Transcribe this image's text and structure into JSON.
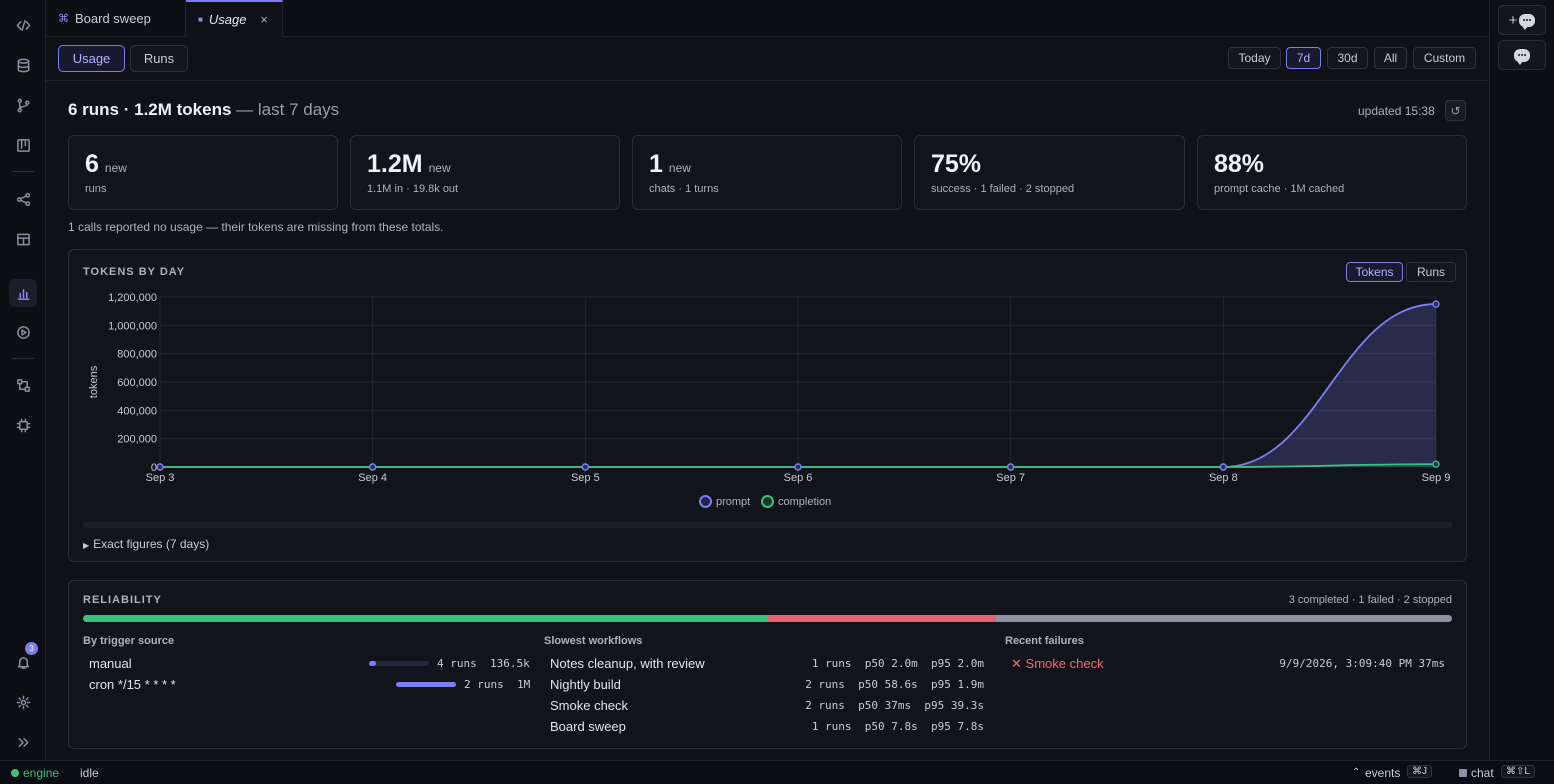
{
  "tabs": [
    {
      "icon": "⌘",
      "label": "Board sweep"
    },
    {
      "icon": "■",
      "label": "Usage",
      "close": "×"
    }
  ],
  "toolbar": {
    "views": [
      "Usage",
      "Runs"
    ],
    "ranges": [
      "Today",
      "7d",
      "30d",
      "All",
      "Custom"
    ],
    "selected_view": "Usage",
    "selected_range": "7d"
  },
  "summary": {
    "headline": "6 runs · 1.2M tokens",
    "headline_suffix": " — last 7 days",
    "updated": "updated 15:38",
    "refresh_icon": "↺"
  },
  "cards": [
    {
      "value": "6",
      "tag": "new",
      "detail": "runs"
    },
    {
      "value": "1.2M",
      "tag": "new",
      "detail": "1.1M in · 19.8k out"
    },
    {
      "value": "1",
      "tag": "new",
      "detail": "chats · 1 turns"
    },
    {
      "value": "75%",
      "tag": "",
      "detail": "success · 1 failed · 2 stopped"
    },
    {
      "value": "88%",
      "tag": "",
      "detail": "prompt cache · 1M cached"
    }
  ],
  "warning": "1 calls reported no usage — their tokens are missing from these totals.",
  "tokens_panel": {
    "title": "TOKENS BY DAY",
    "toggle": [
      "Tokens",
      "Runs"
    ],
    "selected": "Tokens",
    "exact_label": "Exact figures (7 days)",
    "exact_arrow": "▶"
  },
  "chart_data": {
    "type": "area",
    "x": [
      "Sep 3",
      "Sep 4",
      "Sep 5",
      "Sep 6",
      "Sep 7",
      "Sep 8",
      "Sep 9"
    ],
    "series": [
      {
        "name": "prompt",
        "values": [
          0,
          0,
          0,
          0,
          0,
          0,
          1150000
        ],
        "color": "#7b7ff2"
      },
      {
        "name": "completion",
        "values": [
          0,
          0,
          0,
          0,
          0,
          0,
          19800
        ],
        "color": "#3fbf7f"
      }
    ],
    "ylabel": "tokens",
    "ylim": [
      0,
      1200000
    ],
    "yticks": [
      "0",
      "200,000",
      "400,000",
      "600,000",
      "800,000",
      "1,000,000",
      "1,200,000"
    ],
    "grid": true,
    "legend": "bottom-center"
  },
  "reliability": {
    "title": "RELIABILITY",
    "summary": "3 completed · 1 failed · 2 stopped",
    "shares": {
      "completed": 0.5,
      "failed": 0.1667,
      "stopped": 0.3333
    },
    "colors": {
      "completed": "#3fbf7f",
      "failed": "#e5636a",
      "stopped": "#8e93a3"
    },
    "trigger_header": "By trigger source",
    "triggers": [
      {
        "name": "manual",
        "runs": "4 runs",
        "tokens": "136.5k",
        "share": 0.12
      },
      {
        "name": "cron */15 * * * *",
        "runs": "2 runs",
        "tokens": "1M",
        "share": 1.0
      }
    ],
    "slowest_header": "Slowest workflows",
    "slowest": [
      {
        "name": "Notes cleanup, with review",
        "stats": "1 runs  p50 2.0m  p95 2.0m"
      },
      {
        "name": "Nightly build",
        "stats": "2 runs  p50 58.6s  p95 1.9m"
      },
      {
        "name": "Smoke check",
        "stats": "2 runs  p50 37ms  p95 39.3s"
      },
      {
        "name": "Board sweep",
        "stats": "1 runs  p50 7.8s  p95 7.8s"
      }
    ],
    "failures_header": "Recent failures",
    "failures": [
      {
        "icon": "✕",
        "name": "Smoke check",
        "time": "9/9/2026, 3:09:40 PM",
        "duration": "37ms"
      }
    ]
  },
  "status_bar": {
    "engine": "engine",
    "state": "idle",
    "events": "events",
    "events_key": "⌘J",
    "chat": "chat",
    "chat_key": "⌘⇧L"
  },
  "notifications_count": "3",
  "accent": "#7b7ff2"
}
